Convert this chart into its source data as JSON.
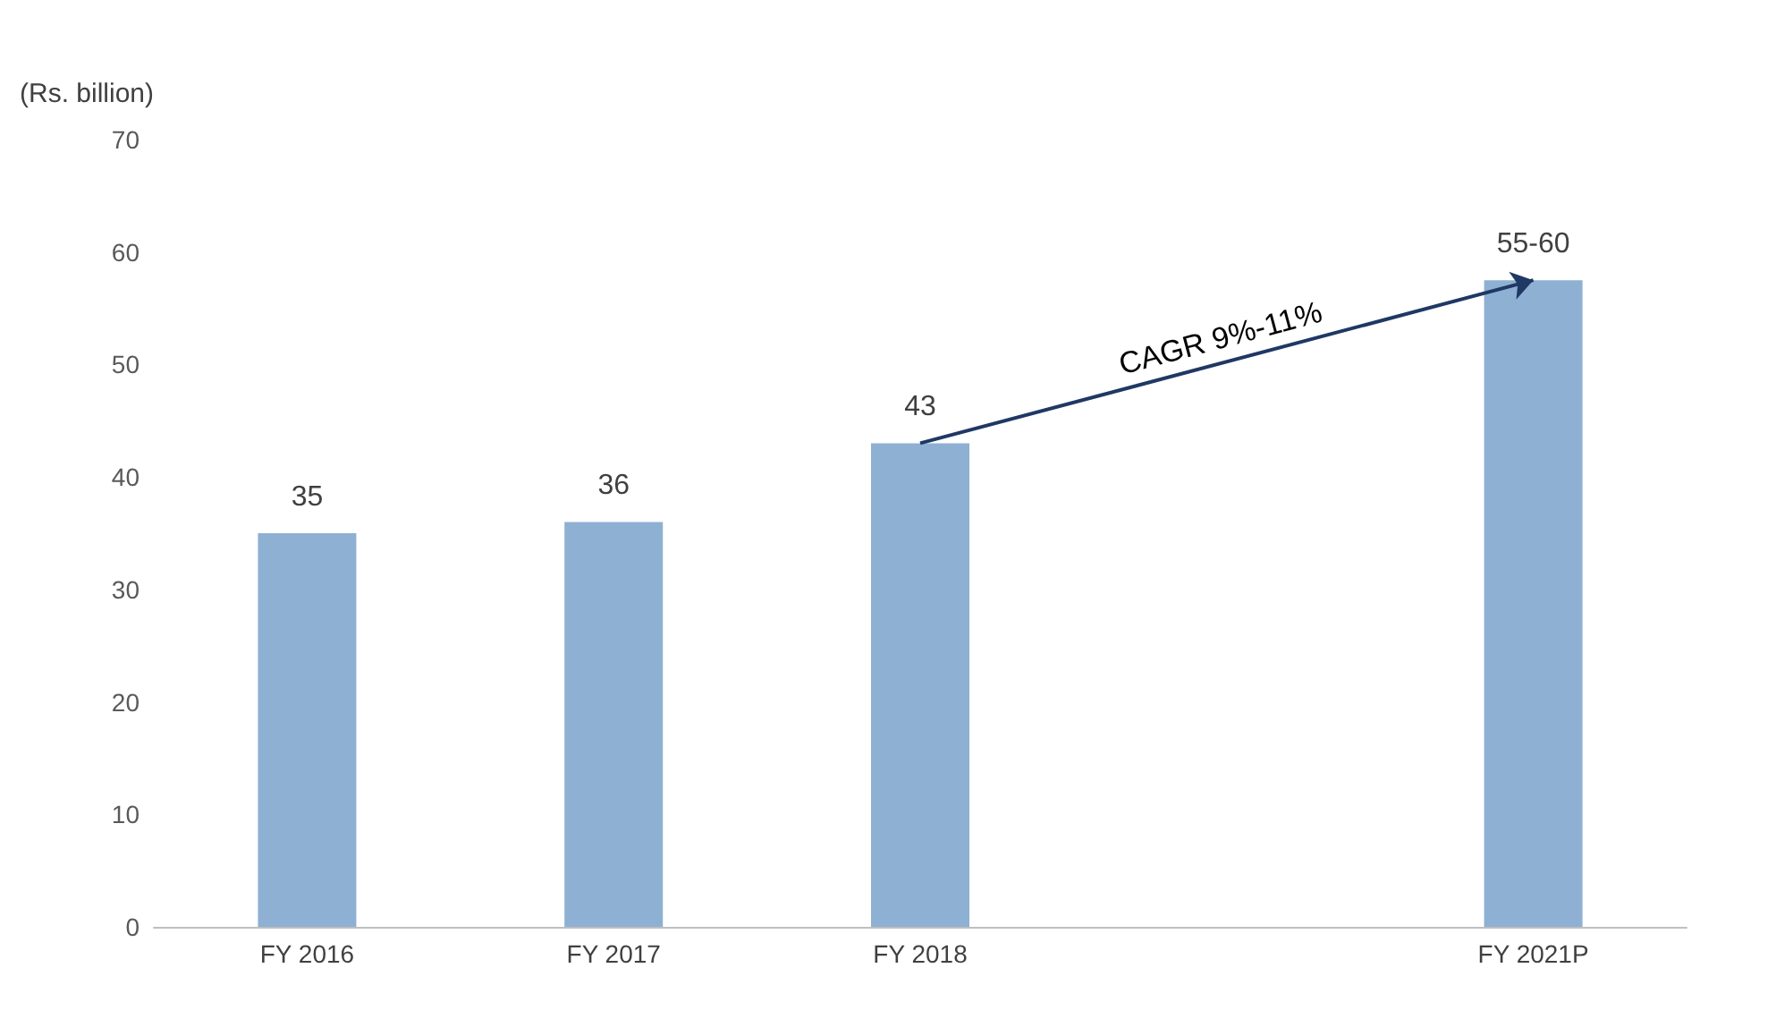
{
  "chart_data": {
    "type": "bar",
    "ylabel": "(Rs. billion)",
    "categories": [
      "FY 2016",
      "FY 2017",
      "FY 2018",
      null,
      "FY 2021P"
    ],
    "values": [
      35,
      36,
      43,
      null,
      57.5
    ],
    "value_labels": [
      "35",
      "36",
      "43",
      null,
      "55-60"
    ],
    "color": "#8eb0d3",
    "ylim": [
      0,
      70
    ],
    "yticks": [
      0,
      10,
      20,
      30,
      40,
      50,
      60,
      70
    ],
    "grid": false,
    "annotations": [
      "CAGR 9%-11%"
    ]
  }
}
